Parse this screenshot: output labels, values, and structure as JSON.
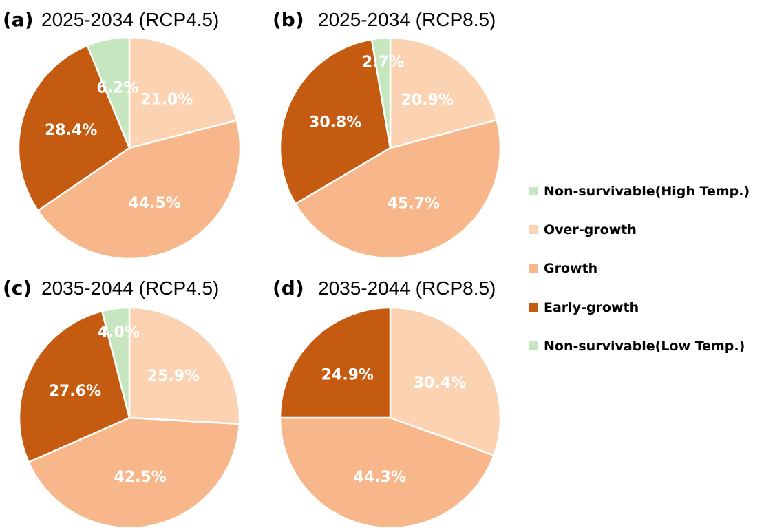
{
  "legend": [
    {
      "key": "high",
      "label": "Non-survivable(High Temp.)",
      "color": "#c6e6c0"
    },
    {
      "key": "over",
      "label": "Over-growth",
      "color": "#fbd3b2"
    },
    {
      "key": "growth",
      "label": "Growth",
      "color": "#f7b78a"
    },
    {
      "key": "early",
      "label": "Early-growth",
      "color": "#c55a11"
    },
    {
      "key": "low",
      "label": "Non-survivable(Low Temp.)",
      "color": "#c6e6c0"
    }
  ],
  "chart_data": [
    {
      "type": "pie",
      "letter": "(a)",
      "title": "2025-2034 (RCP4.5)",
      "slices": [
        {
          "key": "over",
          "value": 21.0,
          "label": "21.0%"
        },
        {
          "key": "growth",
          "value": 44.5,
          "label": "44.5%"
        },
        {
          "key": "early",
          "value": 28.4,
          "label": "28.4%"
        },
        {
          "key": "high",
          "value": 6.2,
          "label": "6.2%"
        }
      ]
    },
    {
      "type": "pie",
      "letter": "(b)",
      "title": "2025-2034 (RCP8.5)",
      "slices": [
        {
          "key": "over",
          "value": 20.9,
          "label": "20.9%"
        },
        {
          "key": "growth",
          "value": 45.7,
          "label": "45.7%"
        },
        {
          "key": "early",
          "value": 30.8,
          "label": "30.8%"
        },
        {
          "key": "high",
          "value": 2.7,
          "label": "2.7%"
        }
      ]
    },
    {
      "type": "pie",
      "letter": "(c)",
      "title": "2035-2044 (RCP4.5)",
      "slices": [
        {
          "key": "over",
          "value": 25.9,
          "label": "25.9%"
        },
        {
          "key": "growth",
          "value": 42.5,
          "label": "42.5%"
        },
        {
          "key": "early",
          "value": 27.6,
          "label": "27.6%"
        },
        {
          "key": "high",
          "value": 4.0,
          "label": "4.0%"
        }
      ]
    },
    {
      "type": "pie",
      "letter": "(d)",
      "title": "2035-2044 (RCP8.5)",
      "slices": [
        {
          "key": "over",
          "value": 30.4,
          "label": "30.4%"
        },
        {
          "key": "growth",
          "value": 44.3,
          "label": "44.3%"
        },
        {
          "key": "early",
          "value": 24.9,
          "label": "24.9%"
        }
      ]
    }
  ]
}
